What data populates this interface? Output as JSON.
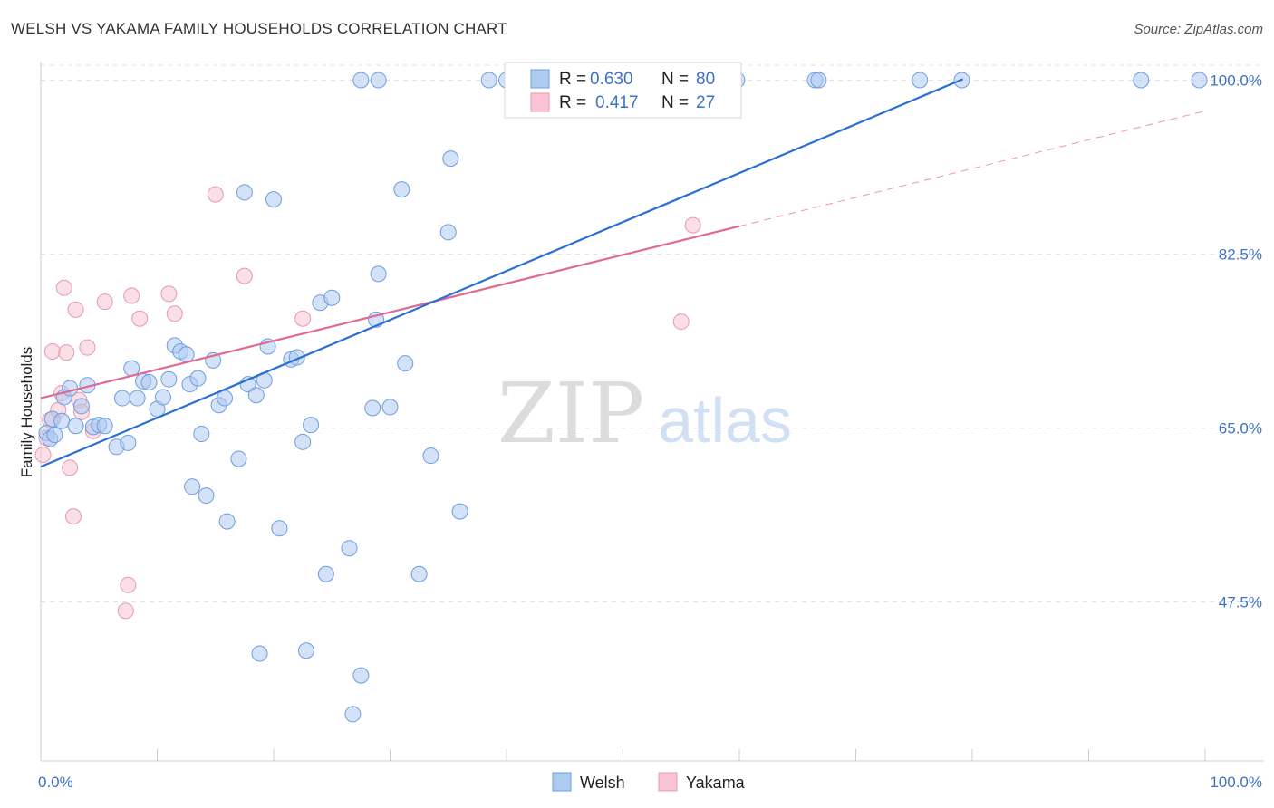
{
  "header": {
    "title": "WELSH VS YAKAMA FAMILY HOUSEHOLDS CORRELATION CHART",
    "source": "Source: ZipAtlas.com"
  },
  "watermark": {
    "zip": "ZIP",
    "atlas": "atlas"
  },
  "chart_data": {
    "type": "scatter",
    "title": "WELSH VS YAKAMA FAMILY HOUSEHOLDS CORRELATION CHART",
    "ylabel": "Family Households",
    "xlabel": "",
    "xlim": [
      0,
      100
    ],
    "ylim": [
      31.5,
      101.5
    ],
    "x_tick_labels": [
      "0.0%",
      "100.0%"
    ],
    "y_ticks": [
      47.5,
      65.0,
      82.5,
      100.0
    ],
    "y_tick_labels": [
      "47.5%",
      "65.0%",
      "82.5%",
      "100.0%"
    ],
    "grid": true,
    "legend_position": "top-center",
    "colors": {
      "welsh_fill": "#aecbf0",
      "welsh_stroke": "#6d9de0",
      "welsh_line": "#2b6fd4",
      "yakama_fill": "#f8c4d4",
      "yakama_stroke": "#e898b0",
      "yakama_line": "#e06a92",
      "grid": "#e3e3e3",
      "label": "#3d72c9"
    },
    "stats": [
      {
        "series": "Welsh",
        "r_label": "R =",
        "r": "0.630",
        "n_label": "N =",
        "n": "80"
      },
      {
        "series": "Yakama",
        "r_label": "R =",
        "r": "0.417",
        "n_label": "N =",
        "n": "27"
      }
    ],
    "series": [
      {
        "name": "Welsh",
        "trend": {
          "x": [
            0.0,
            79.2
          ],
          "y": [
            61.1,
            100.1
          ]
        },
        "points": [
          [
            0.5,
            64.5
          ],
          [
            0.8,
            63.9
          ],
          [
            1.0,
            65.9
          ],
          [
            1.2,
            64.3
          ],
          [
            1.8,
            65.7
          ],
          [
            2.0,
            68.1
          ],
          [
            2.5,
            69.0
          ],
          [
            3.0,
            65.2
          ],
          [
            3.5,
            67.2
          ],
          [
            4.0,
            69.3
          ],
          [
            4.5,
            65.1
          ],
          [
            5.0,
            65.3
          ],
          [
            5.5,
            65.2
          ],
          [
            6.5,
            63.1
          ],
          [
            7.0,
            68.0
          ],
          [
            7.5,
            63.5
          ],
          [
            7.8,
            71.0
          ],
          [
            8.3,
            68.0
          ],
          [
            8.8,
            69.7
          ],
          [
            9.3,
            69.6
          ],
          [
            10.0,
            66.9
          ],
          [
            10.5,
            68.1
          ],
          [
            11.0,
            69.9
          ],
          [
            11.5,
            73.3
          ],
          [
            12.0,
            72.7
          ],
          [
            12.5,
            72.4
          ],
          [
            12.8,
            69.4
          ],
          [
            13.0,
            59.1
          ],
          [
            13.5,
            70.0
          ],
          [
            13.8,
            64.4
          ],
          [
            14.2,
            58.2
          ],
          [
            14.8,
            71.8
          ],
          [
            15.3,
            67.3
          ],
          [
            15.8,
            68.0
          ],
          [
            16.0,
            55.6
          ],
          [
            17.0,
            61.9
          ],
          [
            17.5,
            88.7
          ],
          [
            17.8,
            69.4
          ],
          [
            18.5,
            68.3
          ],
          [
            18.8,
            42.3
          ],
          [
            19.2,
            69.8
          ],
          [
            19.5,
            73.2
          ],
          [
            20.0,
            88.0
          ],
          [
            20.5,
            54.9
          ],
          [
            21.5,
            71.9
          ],
          [
            22.0,
            72.1
          ],
          [
            22.5,
            63.6
          ],
          [
            22.8,
            42.6
          ],
          [
            23.2,
            65.3
          ],
          [
            24.0,
            77.6
          ],
          [
            24.5,
            50.3
          ],
          [
            25.0,
            78.1
          ],
          [
            26.5,
            52.9
          ],
          [
            26.8,
            36.2
          ],
          [
            27.5,
            40.1
          ],
          [
            28.5,
            67.0
          ],
          [
            28.8,
            75.9
          ],
          [
            29.0,
            80.5
          ],
          [
            30.0,
            67.1
          ],
          [
            31.0,
            89.0
          ],
          [
            31.3,
            71.5
          ],
          [
            32.5,
            50.3
          ],
          [
            33.5,
            62.2
          ],
          [
            35.0,
            84.7
          ],
          [
            35.2,
            92.1
          ],
          [
            36.0,
            56.6
          ],
          [
            27.5,
            100.0
          ],
          [
            29.0,
            100.0
          ],
          [
            38.5,
            100.0
          ],
          [
            40.0,
            100.0
          ],
          [
            42.5,
            100.0
          ],
          [
            47.5,
            100.0
          ],
          [
            54.5,
            100.0
          ],
          [
            59.8,
            100.0
          ],
          [
            66.5,
            100.0
          ],
          [
            66.8,
            100.0
          ],
          [
            75.5,
            100.0
          ],
          [
            79.1,
            100.0
          ],
          [
            94.5,
            100.0
          ],
          [
            99.5,
            100.0
          ]
        ]
      },
      {
        "name": "Yakama",
        "trend": {
          "x": [
            0.0,
            60.0
          ],
          "y": [
            68.0,
            85.3
          ]
        },
        "trend_extension": {
          "x": [
            60.0,
            100.0
          ],
          "y": [
            85.3,
            96.9
          ]
        },
        "points": [
          [
            0.2,
            62.3
          ],
          [
            0.5,
            64.0
          ],
          [
            0.8,
            65.8
          ],
          [
            1.0,
            72.7
          ],
          [
            1.5,
            66.8
          ],
          [
            1.8,
            68.5
          ],
          [
            2.0,
            79.1
          ],
          [
            2.2,
            72.6
          ],
          [
            2.5,
            61.0
          ],
          [
            2.8,
            56.1
          ],
          [
            3.0,
            76.9
          ],
          [
            3.3,
            67.8
          ],
          [
            3.5,
            66.6
          ],
          [
            4.0,
            73.1
          ],
          [
            4.5,
            64.7
          ],
          [
            5.5,
            77.7
          ],
          [
            7.5,
            49.2
          ],
          [
            7.3,
            46.6
          ],
          [
            7.8,
            78.3
          ],
          [
            8.5,
            76.0
          ],
          [
            11.0,
            78.5
          ],
          [
            11.5,
            76.5
          ],
          [
            15.0,
            88.5
          ],
          [
            17.5,
            80.3
          ],
          [
            22.5,
            76.0
          ],
          [
            55.0,
            75.7
          ],
          [
            56.0,
            85.4
          ]
        ]
      }
    ]
  }
}
